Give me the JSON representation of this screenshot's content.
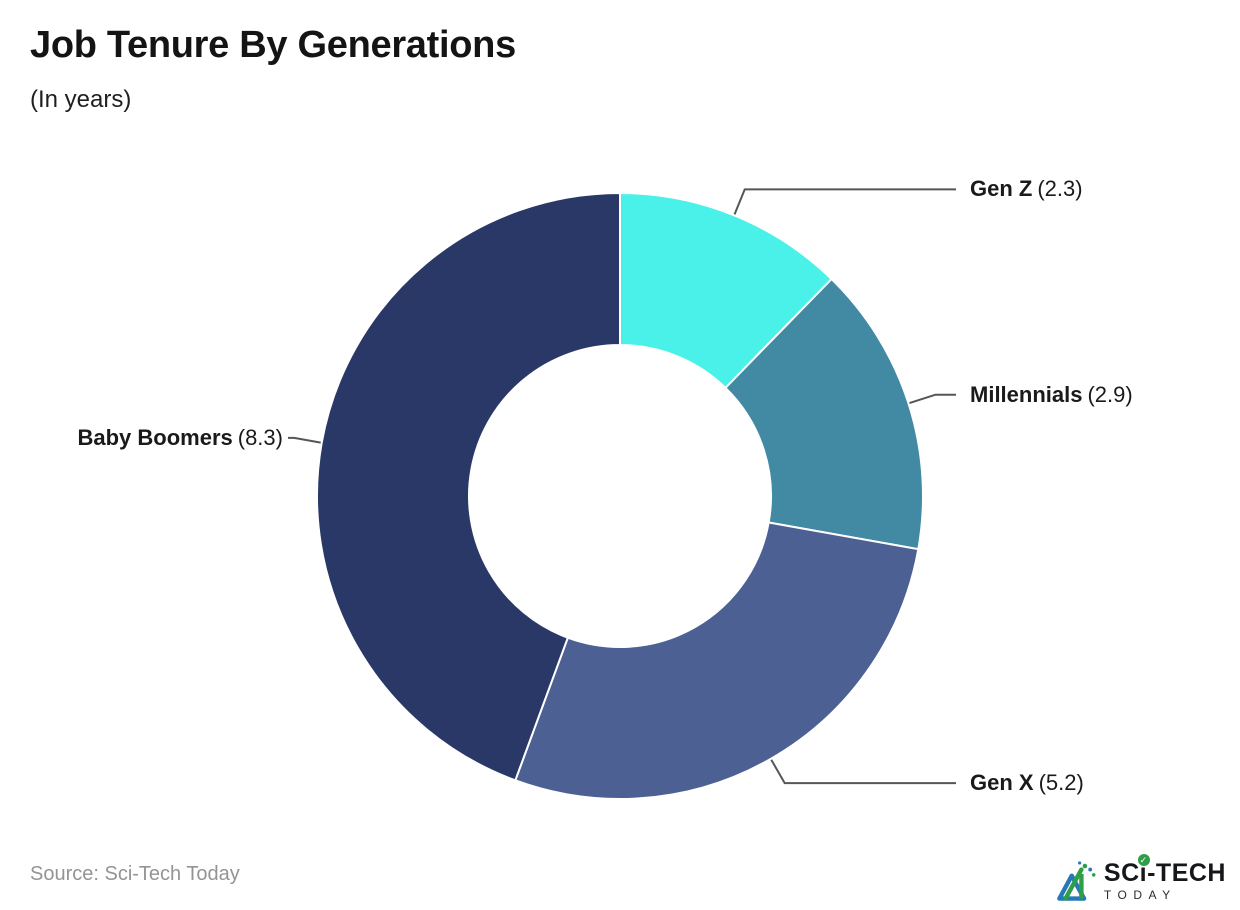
{
  "header": {
    "title": "Job Tenure By Generations",
    "subtitle": "(In years)"
  },
  "footer": {
    "source": "Source: Sci-Tech Today",
    "logo": {
      "word_left": "SC",
      "word_i": "ı",
      "word_right": "-TECH",
      "tagline": "TODAY"
    }
  },
  "icons": {
    "check": "✓"
  },
  "chart_data": {
    "type": "donut",
    "title": "Job Tenure By Generations",
    "unit_note": "In years",
    "categories": [
      "Gen Z",
      "Millennials",
      "Gen X",
      "Baby Boomers"
    ],
    "values": [
      2.3,
      2.9,
      5.2,
      8.3
    ],
    "colors": [
      "#49F1E9",
      "#4289A4",
      "#4C6094",
      "#293866"
    ],
    "start_angle": 0,
    "direction": "clockwise",
    "inner_radius_ratio": 0.5,
    "slice_border_color": "#FFFFFF",
    "leader_line_color": "#55565A",
    "label_text_color": "#1A1A1A",
    "label_format": "{name} ({value})",
    "legend_position": "callout-labels"
  }
}
